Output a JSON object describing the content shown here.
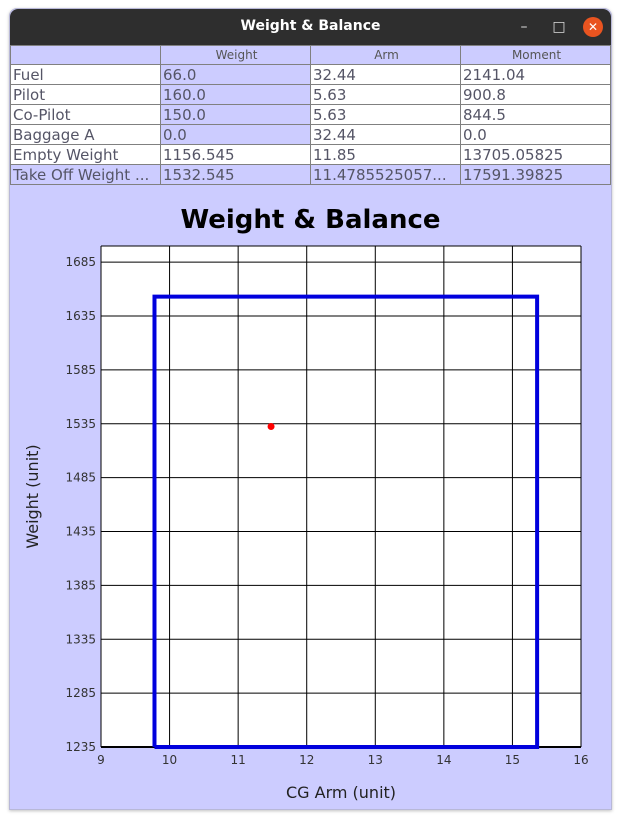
{
  "window": {
    "title": "Weight & Balance",
    "minimize_glyph": "–",
    "maximize_glyph": "□",
    "close_glyph": "✕"
  },
  "table": {
    "headers": [
      "",
      "Weight",
      "Arm",
      "Moment"
    ],
    "rows": [
      {
        "label": "Fuel",
        "weight": "66.0",
        "arm": "32.44",
        "moment": "2141.04"
      },
      {
        "label": "Pilot",
        "weight": "160.0",
        "arm": "5.63",
        "moment": "900.8"
      },
      {
        "label": "Co-Pilot",
        "weight": "150.0",
        "arm": "5.63",
        "moment": "844.5"
      },
      {
        "label": "Baggage A",
        "weight": "0.0",
        "arm": "32.44",
        "moment": "0.0"
      },
      {
        "label": "Empty Weight",
        "weight": "1156.545",
        "arm": "11.85",
        "moment": "13705.05825"
      },
      {
        "label": "Take Off Weight ...",
        "weight": "1532.545",
        "arm": "11.4785525057...",
        "moment": "17591.39825"
      }
    ],
    "selected_row": 5
  },
  "chart_data": {
    "type": "scatter",
    "title": "Weight & Balance",
    "xlabel": "CG Arm (unit)",
    "ylabel": "Weight (unit)",
    "xlim": [
      9,
      16
    ],
    "ylim": [
      1235,
      1700
    ],
    "xticks": [
      9,
      10,
      11,
      12,
      13,
      14,
      15,
      16
    ],
    "yticks": [
      1235,
      1285,
      1335,
      1385,
      1435,
      1485,
      1535,
      1585,
      1635,
      1685
    ],
    "grid": true,
    "envelope": {
      "color": "#0000dd",
      "points": [
        [
          9.78,
          1235
        ],
        [
          9.78,
          1653
        ],
        [
          15.36,
          1653
        ],
        [
          15.36,
          1235
        ],
        [
          9.78,
          1235
        ]
      ]
    },
    "point": {
      "x": 11.48,
      "y": 1532.5,
      "color": "#ff0000"
    }
  }
}
